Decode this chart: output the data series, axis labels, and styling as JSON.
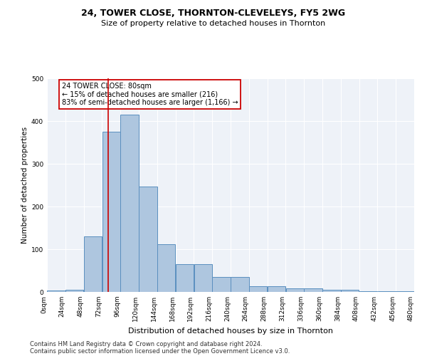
{
  "title1": "24, TOWER CLOSE, THORNTON-CLEVELEYS, FY5 2WG",
  "title2": "Size of property relative to detached houses in Thornton",
  "xlabel": "Distribution of detached houses by size in Thornton",
  "ylabel": "Number of detached properties",
  "footnote1": "Contains HM Land Registry data © Crown copyright and database right 2024.",
  "footnote2": "Contains public sector information licensed under the Open Government Licence v3.0.",
  "bin_edges": [
    0,
    24,
    48,
    72,
    96,
    120,
    144,
    168,
    192,
    216,
    240,
    264,
    288,
    312,
    336,
    360,
    384,
    408,
    432,
    456,
    480
  ],
  "bar_values": [
    4,
    5,
    130,
    375,
    415,
    246,
    111,
    65,
    65,
    35,
    35,
    14,
    14,
    8,
    8,
    5,
    5,
    1,
    1,
    1,
    2
  ],
  "bar_color": "#aec6df",
  "bar_edge_color": "#5a8fbf",
  "property_size": 80,
  "annotation_line1": "24 TOWER CLOSE: 80sqm",
  "annotation_line2": "← 15% of detached houses are smaller (216)",
  "annotation_line3": "83% of semi-detached houses are larger (1,166) →",
  "annotation_box_color": "#ffffff",
  "annotation_box_edge": "#cc0000",
  "vline_color": "#cc0000",
  "ylim_max": 500,
  "background_color": "#eef2f8",
  "grid_color": "#ffffff",
  "tick_label_rotation": 90,
  "title1_fontsize": 9,
  "title2_fontsize": 8,
  "ylabel_fontsize": 7.5,
  "xlabel_fontsize": 8,
  "tick_fontsize": 6.5,
  "footnote_fontsize": 6,
  "annot_fontsize": 7
}
